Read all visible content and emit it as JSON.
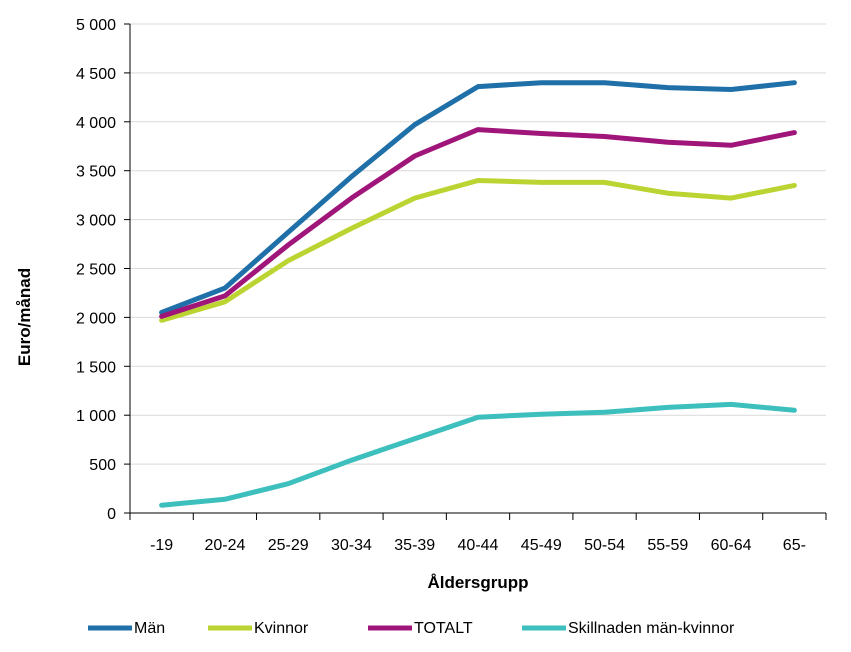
{
  "chart_data": {
    "type": "line",
    "title": "",
    "xlabel": "Åldersgrupp",
    "ylabel": "Euro/månad",
    "categories": [
      "-19",
      "20-24",
      "25-29",
      "30-34",
      "35-39",
      "40-44",
      "45-49",
      "50-54",
      "55-59",
      "60-64",
      "65-"
    ],
    "y_ticks": [
      "0",
      "500",
      "1 000",
      "1 500",
      "2 000",
      "2 500",
      "3 000",
      "3 500",
      "4 000",
      "4 500",
      "5 000"
    ],
    "ylim": [
      0,
      5000
    ],
    "grid": "horizontal",
    "legend_position": "bottom",
    "series": [
      {
        "name": "Män",
        "color": "#1f6fa8",
        "values": [
          2050,
          2300,
          2870,
          3440,
          3970,
          4360,
          4400,
          4400,
          4350,
          4330,
          4400
        ]
      },
      {
        "name": "Kvinnor",
        "color": "#bcd431",
        "values": [
          1970,
          2160,
          2580,
          2910,
          3220,
          3400,
          3380,
          3380,
          3270,
          3220,
          3350
        ]
      },
      {
        "name": "TOTALT",
        "color": "#a0157a",
        "values": [
          2010,
          2220,
          2740,
          3220,
          3650,
          3920,
          3880,
          3850,
          3790,
          3760,
          3890
        ]
      },
      {
        "name": "Skillnaden män-kvinnor",
        "color": "#3dbfbd",
        "values": [
          80,
          140,
          300,
          540,
          760,
          980,
          1010,
          1030,
          1080,
          1110,
          1050
        ]
      }
    ]
  }
}
